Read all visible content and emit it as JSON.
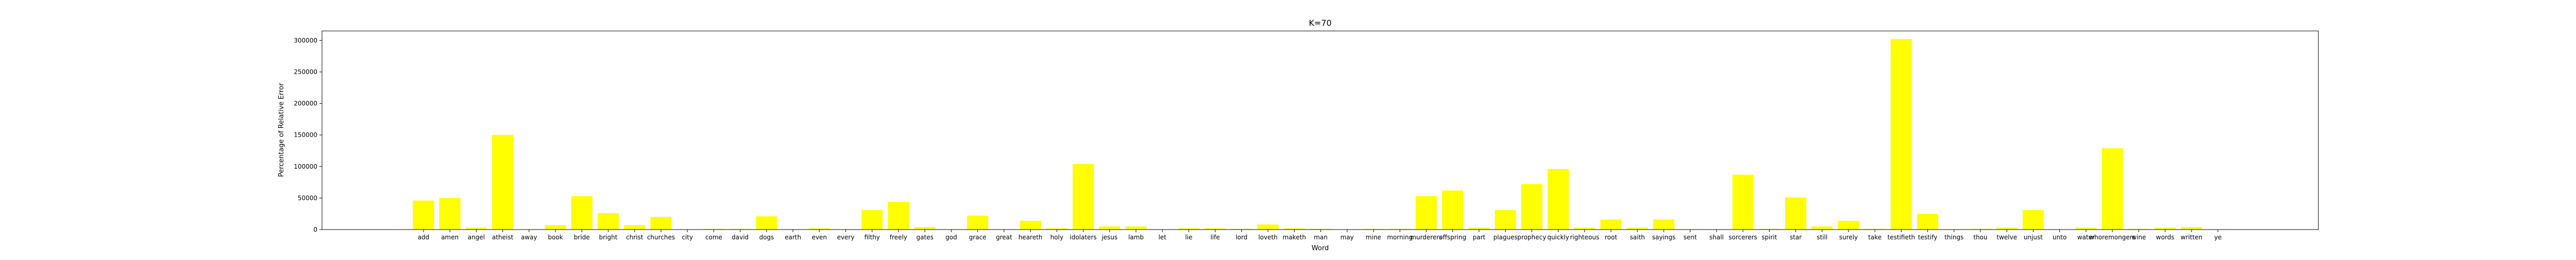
{
  "chart_data": {
    "type": "bar",
    "title": "K=70",
    "xlabel": "Word",
    "ylabel": "Percentage of Relative Error",
    "ylim": [
      0,
      315000
    ],
    "yticks": [
      0,
      50000,
      100000,
      150000,
      200000,
      250000,
      300000
    ],
    "ytick_labels": [
      "0",
      "50000",
      "100000",
      "150000",
      "200000",
      "250000",
      "300000"
    ],
    "bar_color": "#ffff00",
    "grid": false,
    "categories": [
      "add",
      "amen",
      "angel",
      "atheist",
      "away",
      "book",
      "bride",
      "bright",
      "christ",
      "churches",
      "city",
      "come",
      "david",
      "dogs",
      "earth",
      "even",
      "every",
      "filthy",
      "freely",
      "gates",
      "god",
      "grace",
      "great",
      "heareth",
      "holy",
      "idolaters",
      "jesus",
      "lamb",
      "let",
      "lie",
      "life",
      "lord",
      "loveth",
      "maketh",
      "man",
      "may",
      "mine",
      "morning",
      "murderers",
      "offspring",
      "part",
      "plagues",
      "prophecy",
      "quickly",
      "righteous",
      "root",
      "saith",
      "sayings",
      "sent",
      "shall",
      "sorcerers",
      "spirit",
      "star",
      "still",
      "surely",
      "take",
      "testifieth",
      "testify",
      "things",
      "thou",
      "twelve",
      "unjust",
      "unto",
      "water",
      "whoremongers",
      "wine",
      "words",
      "written",
      "ye"
    ],
    "values": [
      46000,
      50000,
      3000,
      150000,
      500,
      7000,
      53000,
      26000,
      7000,
      20000,
      0,
      1000,
      1000,
      21000,
      500,
      2000,
      500,
      31000,
      44000,
      4000,
      500,
      22000,
      500,
      14000,
      2000,
      104000,
      5000,
      5000,
      500,
      2000,
      2000,
      1000,
      8000,
      2000,
      1000,
      0,
      1000,
      1000,
      53000,
      62000,
      3000,
      31000,
      72000,
      96000,
      3000,
      16000,
      3000,
      16000,
      500,
      0,
      87000,
      1000,
      51000,
      5000,
      14000,
      1000,
      302000,
      25000,
      500,
      1000,
      3000,
      31000,
      0,
      3000,
      129000,
      1000,
      3000,
      4000,
      500
    ]
  }
}
